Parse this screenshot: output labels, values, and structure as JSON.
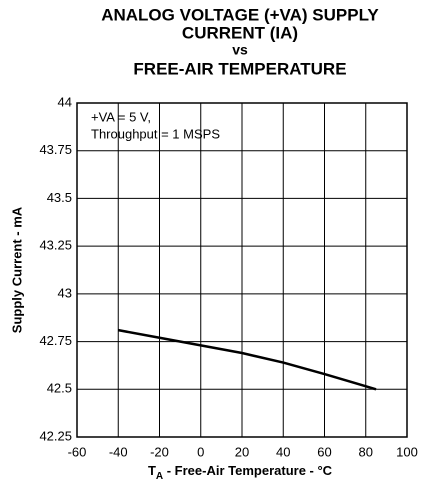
{
  "chart_data": {
    "type": "line",
    "title": [
      "ANALOG VOLTAGE (+VA) SUPPLY",
      "CURRENT (IA)",
      "vs",
      "FREE-AIR TEMPERATURE"
    ],
    "annotations": [
      "+VA = 5 V,",
      "Throughput  = 1 MSPS"
    ],
    "xlabel": [
      "T",
      "A",
      " - Free-Air Temperature - °C"
    ],
    "ylabel": "Supply Current - mA",
    "x": [
      -40,
      -20,
      0,
      20,
      40,
      60,
      85
    ],
    "series": [
      {
        "name": "IA",
        "color": "#000000",
        "values": [
          42.81,
          42.77,
          42.73,
          42.69,
          42.64,
          42.58,
          42.5
        ]
      }
    ],
    "xlim": [
      -60,
      100
    ],
    "xticks": [
      -60,
      -40,
      -20,
      0,
      20,
      40,
      60,
      80,
      100
    ],
    "ylim": [
      42.25,
      44
    ],
    "yticks": [
      42.25,
      42.5,
      42.75,
      43,
      43.25,
      43.5,
      43.75,
      44
    ],
    "grid": true
  }
}
